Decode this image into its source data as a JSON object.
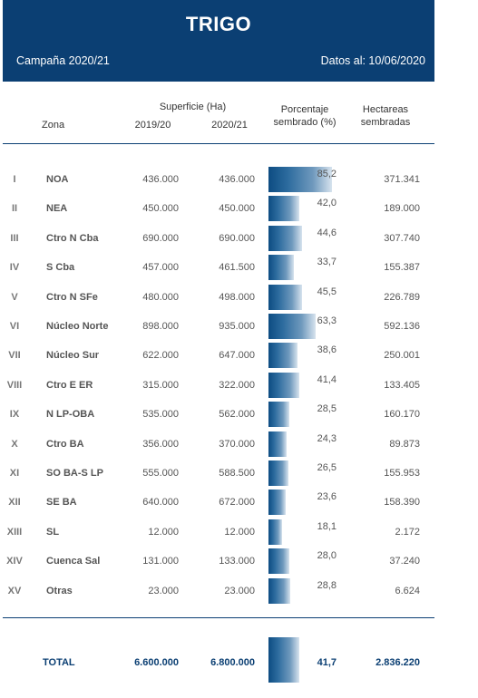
{
  "header": {
    "title": "TRIGO",
    "campaign": "Campaña 2020/21",
    "date": "Datos al: 10/06/2020"
  },
  "columns": {
    "zona": "Zona",
    "superficie": "Superficie (Ha)",
    "year1": "2019/20",
    "year2": "2020/21",
    "pct_line1": "Porcentaje",
    "pct_line2": "sembrado (%)",
    "hect_line1": "Hectareas",
    "hect_line2": "sembradas"
  },
  "rows": [
    {
      "roman": "I",
      "zona": "NOA",
      "sup_2019": "436.000",
      "sup_2020": "436.000",
      "pct": "85,2",
      "pct_value": 85.2,
      "hect": "371.341"
    },
    {
      "roman": "II",
      "zona": "NEA",
      "sup_2019": "450.000",
      "sup_2020": "450.000",
      "pct": "42,0",
      "pct_value": 42.0,
      "hect": "189.000"
    },
    {
      "roman": "III",
      "zona": "Ctro N Cba",
      "sup_2019": "690.000",
      "sup_2020": "690.000",
      "pct": "44,6",
      "pct_value": 44.6,
      "hect": "307.740"
    },
    {
      "roman": "IV",
      "zona": "S Cba",
      "sup_2019": "457.000",
      "sup_2020": "461.500",
      "pct": "33,7",
      "pct_value": 33.7,
      "hect": "155.387"
    },
    {
      "roman": "V",
      "zona": "Ctro N SFe",
      "sup_2019": "480.000",
      "sup_2020": "498.000",
      "pct": "45,5",
      "pct_value": 45.5,
      "hect": "226.789"
    },
    {
      "roman": "VI",
      "zona": "Núcleo Norte",
      "sup_2019": "898.000",
      "sup_2020": "935.000",
      "pct": "63,3",
      "pct_value": 63.3,
      "hect": "592.136"
    },
    {
      "roman": "VII",
      "zona": "Núcleo Sur",
      "sup_2019": "622.000",
      "sup_2020": "647.000",
      "pct": "38,6",
      "pct_value": 38.6,
      "hect": "250.001"
    },
    {
      "roman": "VIII",
      "zona": "Ctro E ER",
      "sup_2019": "315.000",
      "sup_2020": "322.000",
      "pct": "41,4",
      "pct_value": 41.4,
      "hect": "133.405"
    },
    {
      "roman": "IX",
      "zona": "N LP-OBA",
      "sup_2019": "535.000",
      "sup_2020": "562.000",
      "pct": "28,5",
      "pct_value": 28.5,
      "hect": "160.170"
    },
    {
      "roman": "X",
      "zona": "Ctro BA",
      "sup_2019": "356.000",
      "sup_2020": "370.000",
      "pct": "24,3",
      "pct_value": 24.3,
      "hect": "89.873"
    },
    {
      "roman": "XI",
      "zona": "SO BA-S LP",
      "sup_2019": "555.000",
      "sup_2020": "588.500",
      "pct": "26,5",
      "pct_value": 26.5,
      "hect": "155.953"
    },
    {
      "roman": "XII",
      "zona": "SE BA",
      "sup_2019": "640.000",
      "sup_2020": "672.000",
      "pct": "23,6",
      "pct_value": 23.6,
      "hect": "158.390"
    },
    {
      "roman": "XIII",
      "zona": "SL",
      "sup_2019": "12.000",
      "sup_2020": "12.000",
      "pct": "18,1",
      "pct_value": 18.1,
      "hect": "2.172"
    },
    {
      "roman": "XIV",
      "zona": "Cuenca Sal",
      "sup_2019": "131.000",
      "sup_2020": "133.000",
      "pct": "28,0",
      "pct_value": 28.0,
      "hect": "37.240"
    },
    {
      "roman": "XV",
      "zona": "Otras",
      "sup_2019": "23.000",
      "sup_2020": "23.000",
      "pct": "28,8",
      "pct_value": 28.8,
      "hect": "6.624"
    }
  ],
  "total": {
    "label": "TOTAL",
    "sup_2019": "6.600.000",
    "sup_2020": "6.800.000",
    "pct": "41,7",
    "pct_value": 41.7,
    "hect": "2.836.220"
  },
  "colors": {
    "header_bg": "#0b3f73",
    "bar_dark": "#0d4c82",
    "bar_light": "#d7e3ee"
  }
}
